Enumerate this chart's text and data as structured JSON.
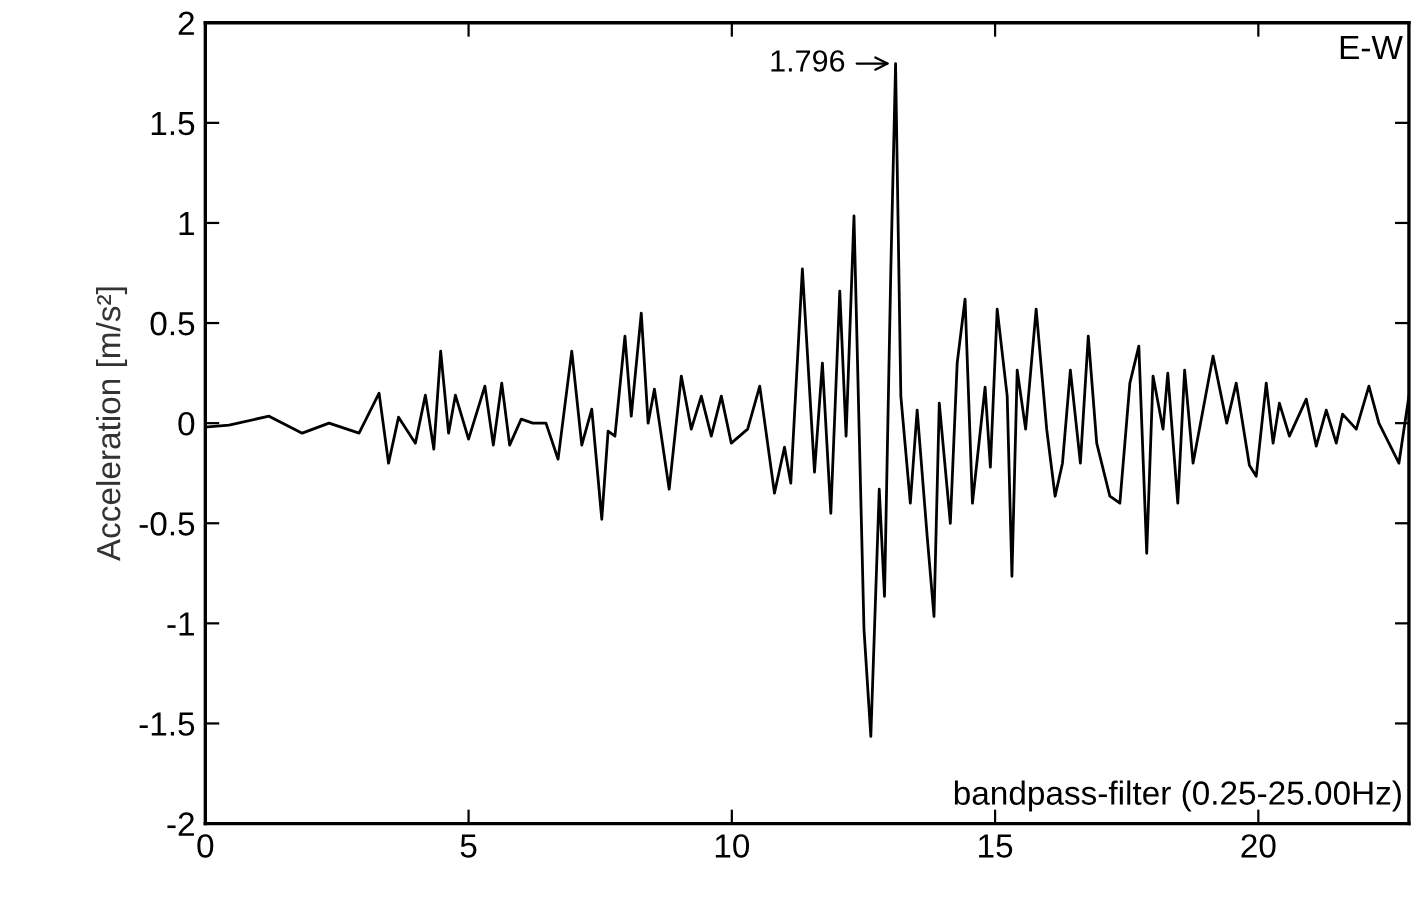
{
  "chart_data": {
    "type": "line",
    "ylabel": "Acceleration [m/s²]",
    "xlim": [
      0,
      22.86
    ],
    "ylim": [
      -2,
      2
    ],
    "xticks": [
      0,
      5,
      10,
      15,
      20
    ],
    "yticks": [
      -2,
      -1.5,
      -1,
      -0.5,
      0,
      0.5,
      1,
      1.5,
      2
    ],
    "grid": false,
    "legend": false,
    "marker": "none",
    "line_style": "solid",
    "annotations": [
      {
        "text": "1.796",
        "x": 13.11,
        "y": 1.796
      },
      "E-W",
      "bandpass-filter (0.25-25.00Hz)"
    ],
    "series": [
      {
        "color": "#000000",
        "x": [
          0,
          0.45,
          1.21,
          1.84,
          2.35,
          2.92,
          3.3,
          3.48,
          3.67,
          3.99,
          4.18,
          4.34,
          4.47,
          4.62,
          4.75,
          5.0,
          5.31,
          5.47,
          5.63,
          5.78,
          6.0,
          6.22,
          6.47,
          6.7,
          6.96,
          7.15,
          7.34,
          7.53,
          7.65,
          7.78,
          7.97,
          8.09,
          8.28,
          8.41,
          8.53,
          8.81,
          9.04,
          9.23,
          9.42,
          9.61,
          9.8,
          9.99,
          10.3,
          10.53,
          10.81,
          11.0,
          11.12,
          11.34,
          11.57,
          11.72,
          11.88,
          12.05,
          12.17,
          12.32,
          12.51,
          12.64,
          12.8,
          12.9,
          13.02,
          13.11,
          13.21,
          13.39,
          13.52,
          13.71,
          13.84,
          13.94,
          14.15,
          14.28,
          14.43,
          14.57,
          14.81,
          14.91,
          15.04,
          15.23,
          15.32,
          15.42,
          15.58,
          15.78,
          15.98,
          16.14,
          16.28,
          16.43,
          16.62,
          16.77,
          16.93,
          17.18,
          17.37,
          17.56,
          17.73,
          17.88,
          18.0,
          18.19,
          18.28,
          18.47,
          18.6,
          18.76,
          19.14,
          19.4,
          19.58,
          19.83,
          19.96,
          20.15,
          20.28,
          20.4,
          20.59,
          20.91,
          21.1,
          21.29,
          21.48,
          21.6,
          21.86,
          22.1,
          22.29,
          22.67,
          22.86
        ],
        "values": [
          -0.02,
          -0.01,
          0.035,
          -0.05,
          0.0,
          -0.05,
          0.15,
          -0.2,
          0.03,
          -0.1,
          0.14,
          -0.13,
          0.36,
          -0.05,
          0.14,
          -0.08,
          0.185,
          -0.11,
          0.2,
          -0.11,
          0.02,
          0.0,
          0.0,
          -0.18,
          0.36,
          -0.11,
          0.07,
          -0.48,
          -0.04,
          -0.065,
          0.435,
          0.035,
          0.55,
          0.0,
          0.17,
          -0.33,
          0.235,
          -0.03,
          0.135,
          -0.065,
          0.135,
          -0.1,
          -0.03,
          0.185,
          -0.35,
          -0.12,
          -0.3,
          0.77,
          -0.245,
          0.3,
          -0.45,
          0.66,
          -0.065,
          1.035,
          -1.03,
          -1.565,
          -0.33,
          -0.865,
          0.77,
          1.796,
          0.135,
          -0.4,
          0.065,
          -0.565,
          -0.965,
          0.1,
          -0.5,
          0.3,
          0.62,
          -0.4,
          0.18,
          -0.22,
          0.57,
          0.135,
          -0.765,
          0.265,
          -0.03,
          0.57,
          -0.03,
          -0.365,
          -0.2,
          0.265,
          -0.2,
          0.435,
          -0.1,
          -0.365,
          -0.4,
          0.2,
          0.385,
          -0.65,
          0.235,
          -0.03,
          0.25,
          -0.4,
          0.265,
          -0.2,
          0.335,
          0.0,
          0.2,
          -0.21,
          -0.265,
          0.2,
          -0.1,
          0.1,
          -0.065,
          0.12,
          -0.115,
          0.065,
          -0.1,
          0.045,
          -0.03,
          0.185,
          0.0,
          -0.2,
          0.135
        ]
      }
    ]
  }
}
